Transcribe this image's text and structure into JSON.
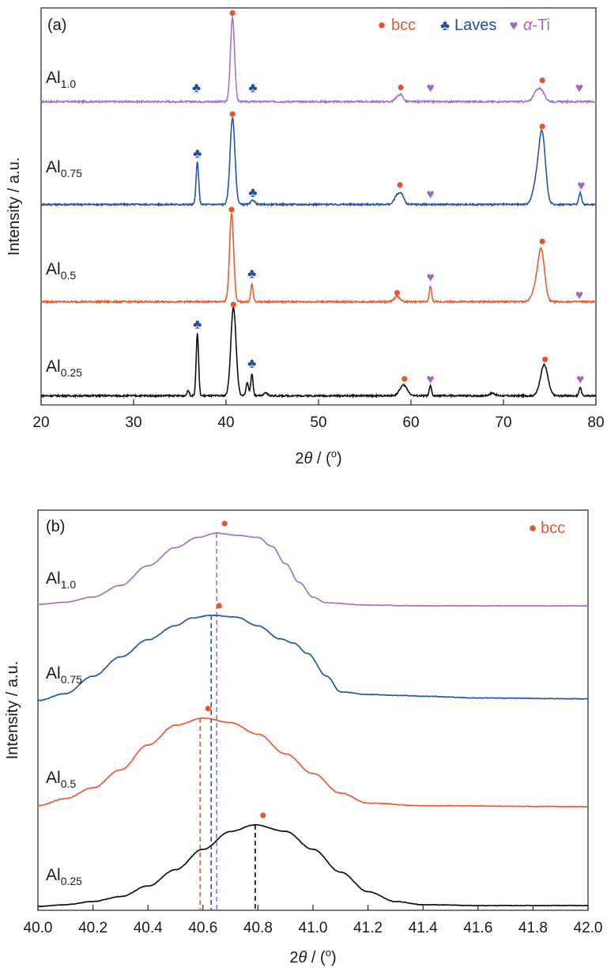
{
  "figure": {
    "colors": {
      "bcc": "#E8552D",
      "laves": "#1F4FA3",
      "alpha_ti": "#A168BD",
      "al10": "#A374C6",
      "al075": "#2457A4",
      "al05": "#EA5B30",
      "al025": "#111111"
    }
  },
  "chart_data": [
    {
      "type": "line",
      "panel_tag": "(a)",
      "xlabel_prefix": "2",
      "xlabel_theta": "θ",
      "xlabel_suffix": " / (",
      "xlabel_degree": "o",
      "xlabel_close": ")",
      "ylabel": "Intensity / a.u.",
      "xlim": [
        20,
        80
      ],
      "x_ticks": [
        20,
        30,
        40,
        50,
        60,
        70,
        80
      ],
      "y_ticks_shown": false,
      "legend_position": "top-right",
      "legend": [
        {
          "marker": "●",
          "label": "bcc",
          "color": "#E8552D"
        },
        {
          "marker": "♣",
          "label": "Laves",
          "color": "#1F4FA3"
        },
        {
          "marker": "♥",
          "label_math": "α",
          "label": "-Ti",
          "color": "#A168BD"
        }
      ],
      "series": [
        {
          "name": "Al",
          "subscript": "1.0",
          "color": "#A374C6",
          "baseline": 0.04,
          "peaks": [
            [
              40.7,
              0.95,
              0.22
            ],
            [
              58.6,
              0.06,
              0.3
            ],
            [
              59.0,
              0.05,
              0.2
            ],
            [
              74.0,
              0.14,
              0.4
            ],
            [
              73.4,
              0.06,
              0.3
            ]
          ],
          "markers": [
            {
              "type": "laves",
              "x": 36.8,
              "y": 0.2
            },
            {
              "type": "bcc",
              "x": 40.7,
              "y": 1.04
            },
            {
              "type": "laves",
              "x": 42.9,
              "y": 0.2
            },
            {
              "type": "bcc",
              "x": 58.9,
              "y": 0.2
            },
            {
              "type": "alpha",
              "x": 62.1,
              "y": 0.2
            },
            {
              "type": "bcc",
              "x": 74.2,
              "y": 0.28
            },
            {
              "type": "alpha",
              "x": 78.2,
              "y": 0.2
            }
          ]
        },
        {
          "name": "Al",
          "subscript": "0.75",
          "color": "#2457A4",
          "baseline": 0.04,
          "peaks": [
            [
              36.9,
              0.48,
              0.14
            ],
            [
              40.7,
              0.98,
              0.26
            ],
            [
              42.9,
              0.05,
              0.2
            ],
            [
              58.5,
              0.1,
              0.3
            ],
            [
              59.0,
              0.1,
              0.25
            ],
            [
              74.2,
              0.75,
              0.35
            ],
            [
              73.6,
              0.25,
              0.4
            ],
            [
              78.3,
              0.13,
              0.15
            ]
          ],
          "markers": [
            {
              "type": "laves",
              "x": 36.9,
              "y": 0.62
            },
            {
              "type": "bcc",
              "x": 40.7,
              "y": 1.06
            },
            {
              "type": "laves",
              "x": 42.9,
              "y": 0.18
            },
            {
              "type": "bcc",
              "x": 58.8,
              "y": 0.26
            },
            {
              "type": "alpha",
              "x": 62.1,
              "y": 0.16
            },
            {
              "type": "bcc",
              "x": 74.2,
              "y": 0.92
            },
            {
              "type": "alpha",
              "x": 78.4,
              "y": 0.26
            }
          ]
        },
        {
          "name": "Al",
          "subscript": "0.5",
          "color": "#EA5B30",
          "baseline": 0.04,
          "peaks": [
            [
              40.6,
              1.0,
              0.22
            ],
            [
              42.8,
              0.2,
              0.12
            ],
            [
              58.5,
              0.06,
              0.3
            ],
            [
              62.1,
              0.18,
              0.12
            ],
            [
              74.1,
              0.55,
              0.35
            ],
            [
              73.5,
              0.15,
              0.4
            ]
          ],
          "markers": [
            {
              "type": "bcc",
              "x": 40.6,
              "y": 1.08
            },
            {
              "type": "laves",
              "x": 42.8,
              "y": 0.36
            },
            {
              "type": "bcc",
              "x": 58.5,
              "y": 0.14
            },
            {
              "type": "alpha",
              "x": 62.1,
              "y": 0.32
            },
            {
              "type": "bcc",
              "x": 74.2,
              "y": 0.72
            },
            {
              "type": "alpha",
              "x": 78.2,
              "y": 0.12
            }
          ]
        },
        {
          "name": "Al",
          "subscript": "0.25",
          "color": "#111111",
          "baseline": 0.05,
          "peaks": [
            [
              35.9,
              0.06,
              0.12
            ],
            [
              36.9,
              0.7,
              0.13
            ],
            [
              40.8,
              1.0,
              0.28
            ],
            [
              42.3,
              0.14,
              0.15
            ],
            [
              42.8,
              0.25,
              0.12
            ],
            [
              44.3,
              0.03,
              0.2
            ],
            [
              59.2,
              0.12,
              0.4
            ],
            [
              62.1,
              0.11,
              0.12
            ],
            [
              68.8,
              0.03,
              0.3
            ],
            [
              74.4,
              0.35,
              0.4
            ],
            [
              78.3,
              0.1,
              0.12
            ]
          ],
          "markers": [
            {
              "type": "laves",
              "x": 36.9,
              "y": 0.86
            },
            {
              "type": "bcc",
              "x": 40.8,
              "y": 1.08
            },
            {
              "type": "laves",
              "x": 42.8,
              "y": 0.42
            },
            {
              "type": "bcc",
              "x": 59.3,
              "y": 0.24
            },
            {
              "type": "alpha",
              "x": 62.1,
              "y": 0.24
            },
            {
              "type": "bcc",
              "x": 74.5,
              "y": 0.46
            },
            {
              "type": "alpha",
              "x": 78.3,
              "y": 0.24
            }
          ]
        }
      ]
    },
    {
      "type": "line",
      "panel_tag": "(b)",
      "xlabel_prefix": "2",
      "xlabel_theta": "θ",
      "xlabel_suffix": " / (",
      "xlabel_degree": "o",
      "xlabel_close": ")",
      "ylabel": "Intensity / a.u.",
      "xlim": [
        40.0,
        42.0
      ],
      "x_ticks": [
        40.0,
        40.2,
        40.4,
        40.6,
        40.8,
        41.0,
        41.2,
        41.4,
        41.6,
        41.8,
        42.0
      ],
      "y_ticks_shown": false,
      "legend_position": "top-right",
      "legend": [
        {
          "marker": "●",
          "label": "bcc",
          "color": "#E8552D"
        }
      ],
      "series": [
        {
          "name": "Al",
          "subscript": "1.0",
          "color": "#A374C6",
          "points": [
            [
              40.0,
              0.02
            ],
            [
              40.1,
              0.05
            ],
            [
              40.2,
              0.12
            ],
            [
              40.3,
              0.28
            ],
            [
              40.4,
              0.55
            ],
            [
              40.5,
              0.8
            ],
            [
              40.58,
              0.94
            ],
            [
              40.65,
              1.0
            ],
            [
              40.72,
              0.97
            ],
            [
              40.8,
              0.94
            ],
            [
              40.85,
              0.82
            ],
            [
              40.9,
              0.58
            ],
            [
              40.95,
              0.32
            ],
            [
              41.0,
              0.12
            ],
            [
              41.05,
              0.04
            ],
            [
              41.2,
              0.01
            ],
            [
              41.4,
              0.0
            ],
            [
              42.0,
              0.0
            ]
          ],
          "peak_x": 40.65,
          "peak_y": 1.0
        },
        {
          "name": "Al",
          "subscript": "0.75",
          "color": "#2457A4",
          "points": [
            [
              40.0,
              0.02
            ],
            [
              40.1,
              0.1
            ],
            [
              40.2,
              0.3
            ],
            [
              40.3,
              0.52
            ],
            [
              40.4,
              0.72
            ],
            [
              40.5,
              0.88
            ],
            [
              40.56,
              0.97
            ],
            [
              40.63,
              1.0
            ],
            [
              40.72,
              0.98
            ],
            [
              40.8,
              0.88
            ],
            [
              40.88,
              0.73
            ],
            [
              40.93,
              0.68
            ],
            [
              40.98,
              0.56
            ],
            [
              41.05,
              0.3
            ],
            [
              41.1,
              0.12
            ],
            [
              41.2,
              0.09
            ],
            [
              41.3,
              0.08
            ],
            [
              41.4,
              0.07
            ],
            [
              41.6,
              0.05
            ],
            [
              42.0,
              0.04
            ]
          ],
          "peak_x": 40.63,
          "peak_y": 1.0
        },
        {
          "name": "Al",
          "subscript": "0.5",
          "color": "#EA5B30",
          "points": [
            [
              40.0,
              0.02
            ],
            [
              40.1,
              0.1
            ],
            [
              40.2,
              0.22
            ],
            [
              40.3,
              0.42
            ],
            [
              40.4,
              0.7
            ],
            [
              40.5,
              0.92
            ],
            [
              40.6,
              1.0
            ],
            [
              40.7,
              0.95
            ],
            [
              40.8,
              0.82
            ],
            [
              40.9,
              0.6
            ],
            [
              41.0,
              0.38
            ],
            [
              41.1,
              0.16
            ],
            [
              41.2,
              0.05
            ],
            [
              41.4,
              0.02
            ],
            [
              42.0,
              0.01
            ]
          ],
          "peak_x": 40.59,
          "peak_y": 1.0
        },
        {
          "name": "Al",
          "subscript": "0.25",
          "color": "#111111",
          "points": [
            [
              40.0,
              0.0
            ],
            [
              40.1,
              0.02
            ],
            [
              40.2,
              0.06
            ],
            [
              40.3,
              0.12
            ],
            [
              40.4,
              0.25
            ],
            [
              40.5,
              0.45
            ],
            [
              40.6,
              0.7
            ],
            [
              40.7,
              0.92
            ],
            [
              40.79,
              1.0
            ],
            [
              40.9,
              0.92
            ],
            [
              41.0,
              0.7
            ],
            [
              41.1,
              0.42
            ],
            [
              41.2,
              0.18
            ],
            [
              41.3,
              0.06
            ],
            [
              41.4,
              0.02
            ],
            [
              41.6,
              0.01
            ],
            [
              42.0,
              0.01
            ]
          ],
          "peak_x": 40.79,
          "peak_y": 1.0
        }
      ]
    }
  ]
}
